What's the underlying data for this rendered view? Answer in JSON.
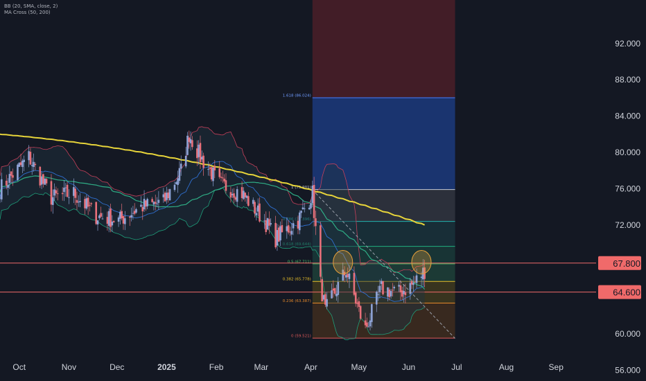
{
  "legend": {
    "bb": "BB (20, SMA, close, 2)",
    "ma": "MA Cross (50, 200)"
  },
  "colors": {
    "background": "#141823",
    "up": "#8ea3d6",
    "down": "#e8707a",
    "bb_band": "#c4405a",
    "bb_basis": "#2f6fd0",
    "ma50": "#2fae86",
    "ma200": "#e8d53a",
    "resistance": "#f06a6a",
    "axis_text": "#d1d4dc",
    "projection_red": "#4a1e28",
    "projection_blue": "#1c3d8a",
    "highlight": "#e8a13a"
  },
  "chart_data": {
    "type": "candlestick",
    "title": "",
    "indicators": [
      "BB (20, SMA, close, 2)",
      "MA Cross (50, 200)"
    ],
    "x_ticks": [
      "Oct",
      "Nov",
      "Dec",
      "2025",
      "Feb",
      "Mar",
      "Apr",
      "May",
      "Jun",
      "Jul",
      "Aug",
      "Sep"
    ],
    "y_ticks": [
      "92.000",
      "88.000",
      "84.000",
      "80.000",
      "76.000",
      "72.000",
      "60.000",
      "56.000"
    ],
    "ylim": [
      54.8,
      96.8
    ],
    "xlim": [
      "2024-09-19",
      "2025-09-26"
    ],
    "horizontal_levels": [
      {
        "label": "67.800",
        "value": 67.8
      },
      {
        "label": "64.600",
        "value": 64.6
      }
    ],
    "fibonacci": [
      {
        "label": "1.618 (86.024)",
        "value": 86.024
      },
      {
        "label": "1 (75.901)",
        "value": 75.901
      },
      {
        "label": "0.786 (72.396)",
        "value": 72.396
      },
      {
        "label": "0.618 (69.644)",
        "value": 69.644
      },
      {
        "label": "0.5 (67.711)",
        "value": 67.711
      },
      {
        "label": "0.382 (65.778)",
        "value": 65.778
      },
      {
        "label": "0.236 (63.387)",
        "value": 63.387
      },
      {
        "label": "0 (59.521)",
        "value": 59.521
      }
    ],
    "approx_close_path": [
      {
        "date": "2024-09-19",
        "close": 76.0
      },
      {
        "date": "2024-10-07",
        "close": 79.5
      },
      {
        "date": "2024-10-21",
        "close": 75.0
      },
      {
        "date": "2024-11-04",
        "close": 75.5
      },
      {
        "date": "2024-11-18",
        "close": 73.0
      },
      {
        "date": "2024-12-02",
        "close": 72.5
      },
      {
        "date": "2024-12-16",
        "close": 74.0
      },
      {
        "date": "2024-12-30",
        "close": 74.5
      },
      {
        "date": "2025-01-10",
        "close": 78.0
      },
      {
        "date": "2025-01-15",
        "close": 82.0
      },
      {
        "date": "2025-01-22",
        "close": 79.5
      },
      {
        "date": "2025-02-03",
        "close": 76.5
      },
      {
        "date": "2025-02-17",
        "close": 75.5
      },
      {
        "date": "2025-03-03",
        "close": 72.5
      },
      {
        "date": "2025-03-10",
        "close": 70.5
      },
      {
        "date": "2025-03-24",
        "close": 72.5
      },
      {
        "date": "2025-04-02",
        "close": 75.5
      },
      {
        "date": "2025-04-07",
        "close": 65.5
      },
      {
        "date": "2025-04-10",
        "close": 62.5
      },
      {
        "date": "2025-04-23",
        "close": 67.0
      },
      {
        "date": "2025-05-01",
        "close": 62.5
      },
      {
        "date": "2025-05-05",
        "close": 60.5
      },
      {
        "date": "2025-05-15",
        "close": 65.0
      },
      {
        "date": "2025-05-26",
        "close": 64.5
      },
      {
        "date": "2025-06-04",
        "close": 65.5
      },
      {
        "date": "2025-06-11",
        "close": 67.0
      }
    ]
  }
}
